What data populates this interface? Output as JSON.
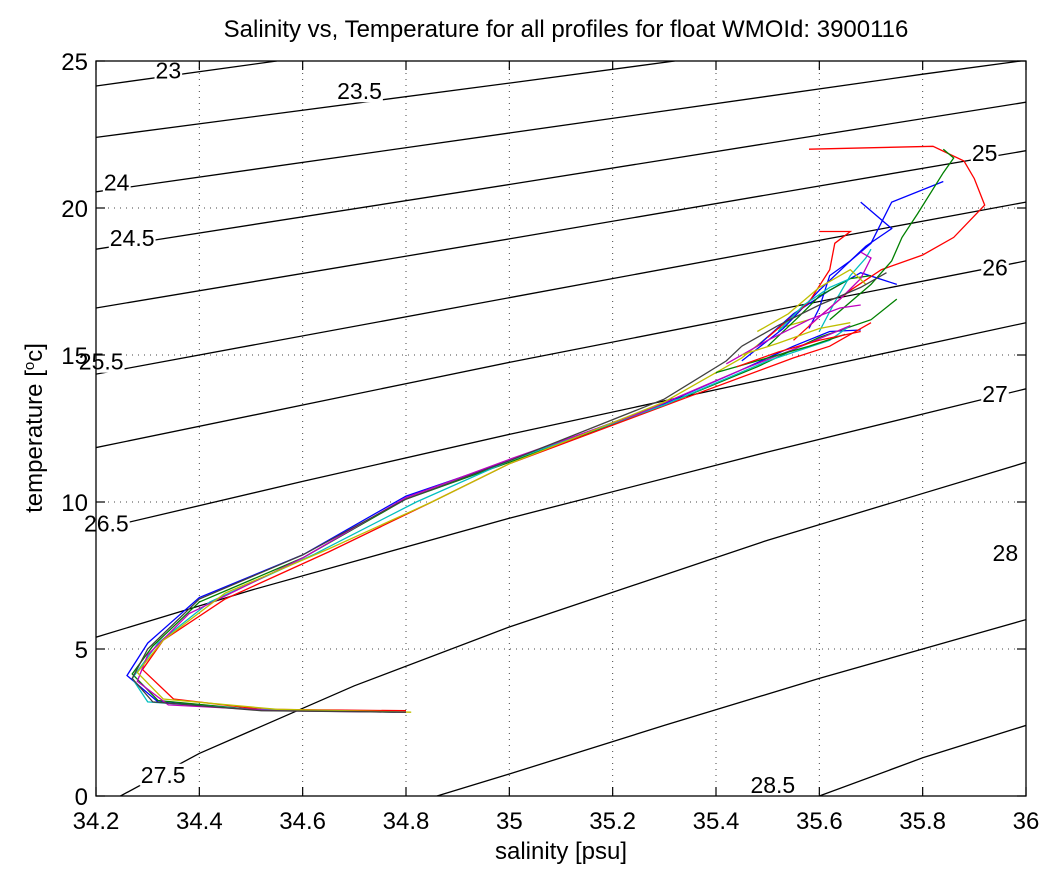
{
  "chart_data": {
    "type": "line",
    "title": "Salinity vs, Temperature for all profiles for float WMOId: 3900116",
    "xlabel": "salinity [psu]",
    "ylabel_main": "temperature [",
    "ylabel_superscript": "o",
    "ylabel_tail": "c]",
    "xlim": [
      34.2,
      36
    ],
    "ylim": [
      0,
      25
    ],
    "x_ticks": [
      34.2,
      34.4,
      34.6,
      34.8,
      35,
      35.2,
      35.4,
      35.6,
      35.8,
      36
    ],
    "x_tick_labels": [
      "34.2",
      "34.4",
      "34.6",
      "34.8",
      "35",
      "35.2",
      "35.4",
      "35.6",
      "35.8",
      "36"
    ],
    "y_ticks": [
      0,
      5,
      10,
      15,
      20,
      25
    ],
    "y_tick_labels": [
      "0",
      "5",
      "10",
      "15",
      "20",
      "25"
    ],
    "grid": true,
    "density_contours": [
      {
        "label": "23",
        "label_pos": [
          34.34,
          24.4
        ],
        "points": [
          [
            34.2,
            24.15
          ],
          [
            34.55,
            25.0
          ]
        ]
      },
      {
        "label": "23.5",
        "label_pos": [
          34.71,
          23.7
        ],
        "points": [
          [
            34.2,
            22.4
          ],
          [
            35.0,
            24.25
          ],
          [
            35.32,
            25.0
          ]
        ]
      },
      {
        "label": "24",
        "label_pos": [
          34.24,
          20.6
        ],
        "points": [
          [
            34.2,
            20.55
          ],
          [
            35.0,
            22.55
          ],
          [
            35.8,
            24.55
          ],
          [
            35.99,
            25.0
          ]
        ]
      },
      {
        "label": "24.5",
        "label_pos": [
          34.27,
          18.7
        ],
        "points": [
          [
            34.2,
            18.6
          ],
          [
            35.0,
            20.8
          ],
          [
            36.0,
            23.6
          ]
        ]
      },
      {
        "label": "25",
        "label_pos": [
          35.92,
          21.6
        ],
        "points": [
          [
            34.2,
            16.6
          ],
          [
            35.0,
            18.95
          ],
          [
            36.0,
            21.95
          ]
        ]
      },
      {
        "label": "25.5",
        "label_pos": [
          34.21,
          14.5
        ],
        "points": [
          [
            34.2,
            14.35
          ],
          [
            35.0,
            16.95
          ],
          [
            36.0,
            20.2
          ]
        ]
      },
      {
        "label": "26",
        "label_pos": [
          35.94,
          17.7
        ],
        "points": [
          [
            34.2,
            11.85
          ],
          [
            35.0,
            14.75
          ],
          [
            36.0,
            18.2
          ]
        ]
      },
      {
        "label": "26.5",
        "label_pos": [
          34.22,
          9.0
        ],
        "points": [
          [
            34.2,
            9.05
          ],
          [
            34.6,
            10.7
          ],
          [
            35.0,
            12.3
          ],
          [
            36.0,
            16.1
          ]
        ]
      },
      {
        "label": "27",
        "label_pos": [
          35.94,
          13.4
        ],
        "points": [
          [
            34.2,
            5.4
          ],
          [
            34.5,
            7.0
          ],
          [
            35.0,
            9.45
          ],
          [
            35.5,
            11.7
          ],
          [
            36.0,
            13.85
          ]
        ]
      },
      {
        "label": "27.5",
        "label_pos": [
          34.33,
          0.45
        ],
        "points": [
          [
            34.2,
            -0.45
          ],
          [
            34.4,
            1.45
          ],
          [
            34.7,
            3.75
          ],
          [
            35.0,
            5.75
          ],
          [
            35.5,
            8.7
          ],
          [
            36.0,
            11.35
          ]
        ]
      },
      {
        "label": "28",
        "label_pos": [
          35.96,
          8.0
        ],
        "points": [
          [
            34.86,
            0.0
          ],
          [
            35.0,
            0.75
          ],
          [
            35.3,
            2.4
          ],
          [
            35.6,
            4.0
          ],
          [
            36.0,
            6.0
          ]
        ]
      },
      {
        "label": "28.5",
        "label_pos": [
          35.51,
          0.1
        ],
        "points": [
          [
            35.6,
            0.0
          ],
          [
            35.8,
            1.3
          ],
          [
            36.0,
            2.4
          ]
        ]
      }
    ],
    "series": [
      {
        "color": "#0000ff",
        "points": [
          [
            34.8,
            2.85
          ],
          [
            34.5,
            2.95
          ],
          [
            34.32,
            3.2
          ],
          [
            34.26,
            4.1
          ],
          [
            34.3,
            5.2
          ],
          [
            34.4,
            6.75
          ],
          [
            34.6,
            8.2
          ],
          [
            34.8,
            10.2
          ],
          [
            35.0,
            11.4
          ],
          [
            35.3,
            13.35
          ],
          [
            35.45,
            14.5
          ],
          [
            35.55,
            15.3
          ],
          [
            35.62,
            15.8
          ],
          [
            35.68,
            15.85
          ]
        ]
      },
      {
        "color": "#008000",
        "points": [
          [
            34.78,
            2.85
          ],
          [
            34.5,
            2.95
          ],
          [
            34.32,
            3.25
          ],
          [
            34.27,
            4.15
          ],
          [
            34.31,
            5.1
          ],
          [
            34.4,
            6.6
          ],
          [
            34.6,
            8.1
          ],
          [
            34.8,
            10.1
          ],
          [
            35.0,
            11.35
          ],
          [
            35.3,
            13.3
          ],
          [
            35.48,
            14.6
          ],
          [
            35.6,
            15.6
          ],
          [
            35.7,
            16.2
          ],
          [
            35.75,
            16.9
          ]
        ]
      },
      {
        "color": "#ff0000",
        "points": [
          [
            34.8,
            2.9
          ],
          [
            34.52,
            2.95
          ],
          [
            34.35,
            3.3
          ],
          [
            34.29,
            4.3
          ],
          [
            34.33,
            5.3
          ],
          [
            34.45,
            6.7
          ],
          [
            34.65,
            8.3
          ],
          [
            34.85,
            10.0
          ],
          [
            35.0,
            11.3
          ],
          [
            35.35,
            13.6
          ],
          [
            35.55,
            14.9
          ],
          [
            35.62,
            15.3
          ],
          [
            35.7,
            16.1
          ]
        ]
      },
      {
        "color": "#00bfbf",
        "points": [
          [
            34.79,
            2.85
          ],
          [
            34.5,
            2.95
          ],
          [
            34.3,
            3.2
          ],
          [
            34.27,
            4.0
          ],
          [
            34.32,
            5.2
          ],
          [
            34.42,
            6.6
          ],
          [
            34.62,
            8.2
          ],
          [
            34.82,
            10.0
          ],
          [
            35.0,
            11.4
          ],
          [
            35.3,
            13.3
          ],
          [
            35.5,
            14.8
          ],
          [
            35.62,
            15.5
          ],
          [
            35.66,
            16.0
          ]
        ]
      },
      {
        "color": "#bf00bf",
        "points": [
          [
            34.8,
            2.85
          ],
          [
            34.55,
            2.9
          ],
          [
            34.34,
            3.1
          ],
          [
            34.28,
            3.9
          ],
          [
            34.3,
            4.8
          ],
          [
            34.38,
            6.2
          ],
          [
            34.6,
            8.1
          ],
          [
            34.8,
            10.15
          ],
          [
            35.0,
            11.45
          ],
          [
            35.25,
            13.0
          ],
          [
            35.45,
            14.5
          ],
          [
            35.58,
            15.4
          ],
          [
            35.66,
            16.0
          ]
        ]
      },
      {
        "color": "#bfbf00",
        "points": [
          [
            34.81,
            2.85
          ],
          [
            34.55,
            2.95
          ],
          [
            34.33,
            3.3
          ],
          [
            34.28,
            4.2
          ],
          [
            34.33,
            5.3
          ],
          [
            34.45,
            6.9
          ],
          [
            34.65,
            8.4
          ],
          [
            34.85,
            10.0
          ],
          [
            35.0,
            11.3
          ],
          [
            35.3,
            13.4
          ],
          [
            35.45,
            14.9
          ],
          [
            35.52,
            15.9
          ],
          [
            35.58,
            16.2
          ]
        ]
      },
      {
        "color": "#404040",
        "points": [
          [
            34.8,
            2.85
          ],
          [
            34.52,
            2.9
          ],
          [
            34.31,
            3.2
          ],
          [
            34.27,
            4.0
          ],
          [
            34.3,
            5.0
          ],
          [
            34.4,
            6.7
          ],
          [
            34.6,
            8.2
          ],
          [
            34.8,
            10.1
          ],
          [
            35.0,
            11.4
          ],
          [
            35.3,
            13.5
          ],
          [
            35.42,
            14.8
          ],
          [
            35.45,
            15.3
          ]
        ]
      },
      {
        "color": "#0000ff",
        "points": [
          [
            35.58,
            15.9
          ],
          [
            35.6,
            16.6
          ],
          [
            35.62,
            17.7
          ],
          [
            35.66,
            18.2
          ],
          [
            35.7,
            18.8
          ],
          [
            35.74,
            20.2
          ],
          [
            35.84,
            20.9
          ]
        ]
      },
      {
        "color": "#0000ff",
        "points": [
          [
            35.45,
            14.8
          ],
          [
            35.53,
            15.9
          ],
          [
            35.6,
            17.2
          ],
          [
            35.69,
            18.7
          ],
          [
            35.74,
            19.3
          ],
          [
            35.68,
            20.2
          ]
        ]
      },
      {
        "color": "#0000ff",
        "points": [
          [
            35.48,
            15.3
          ],
          [
            35.55,
            16.4
          ],
          [
            35.62,
            17.2
          ],
          [
            35.68,
            17.8
          ],
          [
            35.75,
            17.4
          ]
        ]
      },
      {
        "color": "#ff0000",
        "points": [
          [
            35.58,
            22.0
          ],
          [
            35.82,
            22.1
          ],
          [
            35.88,
            21.6
          ],
          [
            35.9,
            21.0
          ],
          [
            35.92,
            20.1
          ],
          [
            35.86,
            19.0
          ],
          [
            35.8,
            18.4
          ],
          [
            35.72,
            17.9
          ],
          [
            35.66,
            17.2
          ],
          [
            35.6,
            16.3
          ],
          [
            35.55,
            15.5
          ]
        ]
      },
      {
        "color": "#ff0000",
        "points": [
          [
            35.5,
            15.6
          ],
          [
            35.58,
            16.8
          ],
          [
            35.62,
            17.9
          ],
          [
            35.63,
            18.8
          ],
          [
            35.66,
            19.2
          ],
          [
            35.6,
            19.2
          ]
        ]
      },
      {
        "color": "#008000",
        "points": [
          [
            35.62,
            16.2
          ],
          [
            35.7,
            17.4
          ],
          [
            35.74,
            18.2
          ],
          [
            35.76,
            19.0
          ],
          [
            35.79,
            19.8
          ],
          [
            35.84,
            21.2
          ],
          [
            35.86,
            21.7
          ],
          [
            35.84,
            22.0
          ]
        ]
      },
      {
        "color": "#008000",
        "points": [
          [
            35.5,
            15.3
          ],
          [
            35.56,
            16.3
          ],
          [
            35.6,
            17.0
          ],
          [
            35.66,
            17.6
          ],
          [
            35.7,
            17.7
          ]
        ]
      },
      {
        "color": "#00bfbf",
        "points": [
          [
            35.6,
            15.8
          ],
          [
            35.63,
            16.8
          ],
          [
            35.66,
            17.7
          ],
          [
            35.69,
            18.3
          ],
          [
            35.7,
            18.6
          ]
        ]
      },
      {
        "color": "#00bfbf",
        "points": [
          [
            35.52,
            15.8
          ],
          [
            35.57,
            16.7
          ],
          [
            35.62,
            17.3
          ],
          [
            35.66,
            17.6
          ]
        ]
      },
      {
        "color": "#bf00bf",
        "points": [
          [
            35.58,
            16.0
          ],
          [
            35.64,
            16.9
          ],
          [
            35.68,
            17.6
          ],
          [
            35.7,
            18.3
          ],
          [
            35.68,
            18.5
          ]
        ]
      },
      {
        "color": "#bf00bf",
        "points": [
          [
            35.42,
            14.7
          ],
          [
            35.5,
            15.5
          ],
          [
            35.58,
            16.2
          ],
          [
            35.64,
            16.6
          ],
          [
            35.68,
            16.7
          ]
        ]
      },
      {
        "color": "#bfbf00",
        "points": [
          [
            35.48,
            15.8
          ],
          [
            35.54,
            16.4
          ],
          [
            35.6,
            17.3
          ],
          [
            35.66,
            17.9
          ],
          [
            35.69,
            17.4
          ]
        ]
      },
      {
        "color": "#bfbf00",
        "points": [
          [
            35.45,
            15.0
          ],
          [
            35.52,
            15.4
          ],
          [
            35.6,
            15.9
          ],
          [
            35.66,
            16.1
          ]
        ]
      },
      {
        "color": "#404040",
        "points": [
          [
            35.45,
            15.3
          ],
          [
            35.52,
            16.0
          ],
          [
            35.6,
            16.7
          ],
          [
            35.68,
            17.3
          ],
          [
            35.73,
            17.8
          ]
        ]
      },
      {
        "color": "#008000",
        "points": [
          [
            35.4,
            14.4
          ],
          [
            35.5,
            14.9
          ],
          [
            35.58,
            15.3
          ],
          [
            35.65,
            15.7
          ]
        ]
      },
      {
        "color": "#ff0000",
        "points": [
          [
            35.44,
            14.6
          ],
          [
            35.52,
            15.1
          ],
          [
            35.6,
            15.5
          ],
          [
            35.68,
            15.8
          ]
        ]
      }
    ]
  }
}
